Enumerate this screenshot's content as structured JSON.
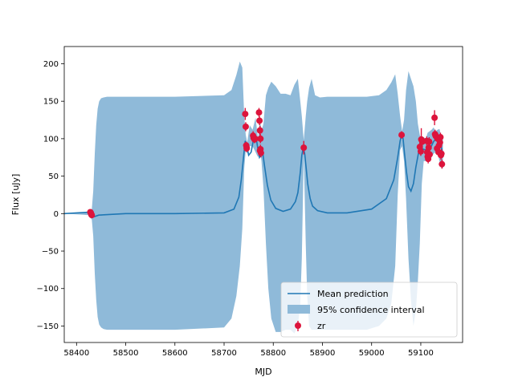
{
  "chart_data": {
    "type": "line",
    "title": "",
    "xlabel": "MJD",
    "ylabel": "Flux [uJy]",
    "xlim": [
      58375,
      59185
    ],
    "ylim": [
      -172,
      223
    ],
    "xticks": [
      58400,
      58500,
      58600,
      58700,
      58800,
      58900,
      59000,
      59100
    ],
    "yticks": [
      -150,
      -100,
      -50,
      0,
      50,
      100,
      150,
      200
    ],
    "grid": false,
    "legend_position": "lower-right",
    "colors": {
      "mean": "#1f77b4",
      "band": "#8fbad9",
      "points": "#dc143c"
    },
    "legend": [
      "Mean prediction",
      "95% confidence interval",
      "zr"
    ],
    "series": [
      {
        "name": "Mean prediction",
        "x": [
          58375,
          58428,
          58431,
          58436,
          58445,
          58470,
          58500,
          58600,
          58700,
          58720,
          58730,
          58735,
          58740,
          58743,
          58746,
          58750,
          58755,
          58760,
          58763,
          58766,
          58769,
          58772,
          58775,
          58778,
          58782,
          58788,
          58795,
          58805,
          58820,
          58835,
          58845,
          58850,
          58855,
          58858,
          58861,
          58864,
          58867,
          58870,
          58875,
          58880,
          58890,
          58910,
          58950,
          59000,
          59030,
          59045,
          59053,
          59058,
          59061,
          59064,
          59067,
          59071,
          59075,
          59080,
          59085,
          59090,
          59095,
          59100,
          59105,
          59110,
          59115,
          59120,
          59125,
          59130,
          59135,
          59140,
          59145
        ],
        "y": [
          0,
          2,
          -3,
          -4,
          -2,
          -1,
          0,
          0,
          1,
          6,
          22,
          45,
          78,
          97,
          92,
          78,
          82,
          100,
          103,
          98,
          85,
          75,
          78,
          84,
          65,
          38,
          18,
          7,
          3,
          6,
          16,
          28,
          55,
          78,
          88,
          80,
          60,
          40,
          20,
          10,
          4,
          1,
          1,
          6,
          20,
          45,
          75,
          97,
          105,
          100,
          80,
          55,
          36,
          30,
          40,
          62,
          80,
          88,
          86,
          85,
          83,
          88,
          95,
          100,
          100,
          93,
          80
        ]
      },
      {
        "name": "95% confidence interval",
        "x": [
          58375,
          58425,
          58428,
          58431,
          58434,
          58437,
          58440,
          58443,
          58446,
          58450,
          58455,
          58462,
          58475,
          58500,
          58600,
          58700,
          58715,
          58725,
          58732,
          58737,
          58741,
          58744,
          58747,
          58752,
          58758,
          58764,
          58769,
          58773,
          58776,
          58780,
          58785,
          58790,
          58796,
          58805,
          58815,
          58825,
          58835,
          58843,
          58850,
          58855,
          58858,
          58862,
          58866,
          58869,
          58873,
          58878,
          58885,
          58895,
          58910,
          58930,
          58960,
          58990,
          59015,
          59030,
          59040,
          59048,
          59053,
          59058,
          59062,
          59066,
          59070,
          59075,
          59080,
          59085,
          59090,
          59094,
          59098,
          59102,
          59106,
          59110,
          59114,
          59118,
          59122,
          59126,
          59130,
          59134,
          59138,
          59142,
          59145
        ],
        "upper": [
          0,
          2,
          5,
          6,
          30,
          80,
          118,
          140,
          150,
          154,
          155,
          156,
          156,
          156,
          156,
          158,
          165,
          185,
          203,
          195,
          130,
          105,
          95,
          118,
          112,
          128,
          100,
          126,
          110,
          120,
          158,
          168,
          176,
          170,
          160,
          160,
          158,
          172,
          180,
          150,
          130,
          98,
          130,
          150,
          168,
          180,
          158,
          155,
          156,
          156,
          156,
          156,
          158,
          165,
          175,
          186,
          160,
          130,
          110,
          125,
          165,
          190,
          180,
          170,
          150,
          120,
          105,
          100,
          102,
          100,
          108,
          110,
          112,
          115,
          110,
          112,
          113,
          102,
          100
        ],
        "lower": [
          0,
          -2,
          -5,
          -8,
          -30,
          -80,
          -115,
          -138,
          -148,
          -152,
          -154,
          -155,
          -155,
          -155,
          -155,
          -152,
          -140,
          -110,
          -70,
          -20,
          60,
          85,
          80,
          90,
          90,
          82,
          75,
          85,
          70,
          35,
          -40,
          -100,
          -140,
          -158,
          -158,
          -155,
          -155,
          -160,
          -150,
          -120,
          -60,
          80,
          -40,
          -110,
          -150,
          -155,
          -155,
          -155,
          -155,
          -155,
          -155,
          -155,
          -150,
          -140,
          -120,
          -70,
          25,
          85,
          90,
          70,
          20,
          -60,
          -115,
          -150,
          -130,
          -90,
          -40,
          40,
          70,
          70,
          70,
          70,
          75,
          80,
          82,
          82,
          70,
          65,
          60
        ]
      },
      {
        "name": "zr",
        "x": [
          58428,
          58429,
          58430,
          58431,
          58743,
          58744,
          58745,
          58746,
          58746,
          58759,
          58760,
          58762,
          58763,
          58771,
          58772,
          58773,
          58774,
          58775,
          58774,
          58773,
          58862,
          59061,
          59098,
          59100,
          59101,
          59103,
          59112,
          59113,
          59114,
          59115,
          59116,
          59117,
          59118,
          59128,
          59129,
          59130,
          59131,
          59133,
          59134,
          59136,
          59137,
          59139,
          59140,
          59141,
          59142,
          59143
        ],
        "y": [
          2,
          1,
          -1,
          -2,
          133,
          116,
          91,
          87,
          88,
          104,
          101,
          99,
          100,
          135,
          124,
          111,
          100,
          81,
          86,
          84,
          88,
          105,
          89,
          83,
          99,
          96,
          97,
          82,
          76,
          73,
          88,
          96,
          79,
          128,
          106,
          104,
          103,
          87,
          100,
          82,
          91,
          95,
          102,
          78,
          80,
          66
        ],
        "yerr": [
          3,
          3,
          3,
          3,
          8,
          6,
          5,
          5,
          5,
          6,
          5,
          5,
          5,
          6,
          6,
          6,
          6,
          6,
          6,
          6,
          9,
          5,
          6,
          6,
          15,
          6,
          6,
          6,
          6,
          6,
          6,
          6,
          6,
          10,
          6,
          6,
          6,
          6,
          6,
          6,
          6,
          6,
          6,
          6,
          6,
          6
        ]
      }
    ]
  }
}
